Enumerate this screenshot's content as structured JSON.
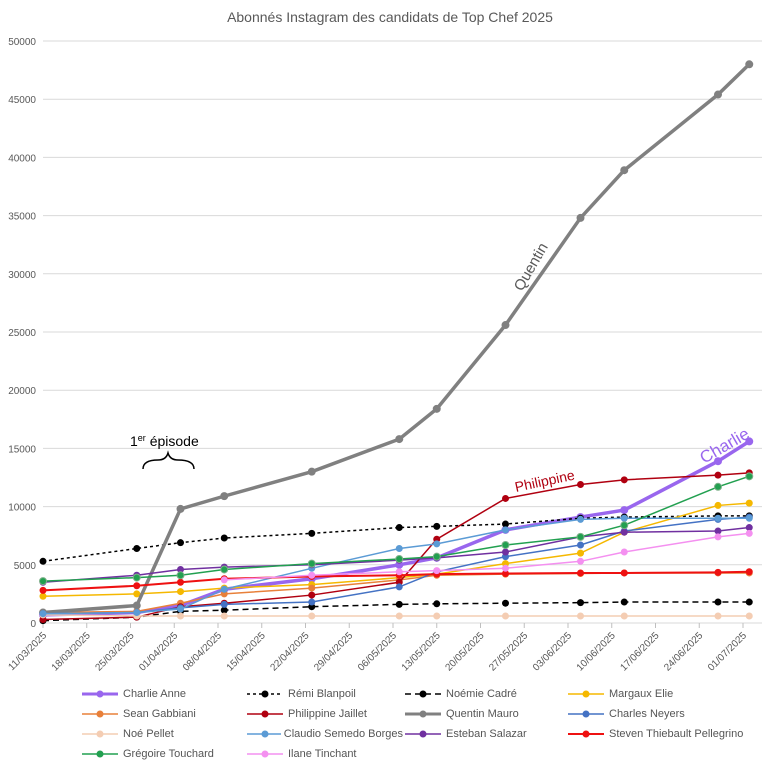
{
  "chart_data": {
    "type": "line",
    "title": "Abonnés Instagram des candidats de Top Chef 2025",
    "xlabel": "",
    "ylabel": "",
    "ylim": [
      0,
      50000
    ],
    "yticks": [
      0,
      5000,
      10000,
      15000,
      20000,
      25000,
      30000,
      35000,
      40000,
      45000,
      50000
    ],
    "xlim": [
      "2025-03-11",
      "2025-07-01"
    ],
    "xtick_labels": [
      "11/03/2025",
      "18/03/2025",
      "25/03/2025",
      "01/04/2025",
      "08/04/2025",
      "15/04/2025",
      "22/04/2025",
      "29/04/2025",
      "06/05/2025",
      "13/05/2025",
      "20/05/2025",
      "27/05/2025",
      "03/06/2025",
      "10/06/2025",
      "17/06/2025",
      "24/06/2025",
      "01/07/2025"
    ],
    "grid": true,
    "legend_position": "bottom",
    "x": [
      "2025-03-11",
      "2025-03-26",
      "2025-04-02",
      "2025-04-09",
      "2025-04-23",
      "2025-05-07",
      "2025-05-13",
      "2025-05-24",
      "2025-06-05",
      "2025-06-12",
      "2025-06-27",
      "2025-07-02"
    ],
    "series": [
      {
        "name": "Charlie Anne",
        "color": "#9966ee",
        "width": 3.5,
        "dash": "",
        "values": [
          700,
          900,
          1500,
          2900,
          3800,
          5000,
          5600,
          8000,
          9100,
          9700,
          13900,
          15600
        ]
      },
      {
        "name": "Rémi Blanpoil",
        "color": "#000000",
        "width": 1.5,
        "dash": "3,3",
        "values": [
          5300,
          6400,
          6900,
          7300,
          7700,
          8200,
          8300,
          8500,
          9000,
          9100,
          9200,
          9200
        ]
      },
      {
        "name": "Noémie Cadré",
        "color": "#000000",
        "width": 1.5,
        "dash": "6,4",
        "values": [
          200,
          500,
          1000,
          1100,
          1400,
          1600,
          1650,
          1700,
          1750,
          1800,
          1800,
          1800
        ]
      },
      {
        "name": "Margaux Elie",
        "color": "#f5b800",
        "width": 1.5,
        "dash": "",
        "values": [
          2300,
          2500,
          2700,
          3000,
          3300,
          3900,
          4200,
          5100,
          6000,
          7800,
          10100,
          10300
        ]
      },
      {
        "name": "Sean Gabbiani",
        "color": "#e8803a",
        "width": 1.5,
        "dash": "",
        "values": [
          900,
          1000,
          1700,
          2500,
          3000,
          3700,
          4100,
          4200,
          4250,
          4300,
          4300,
          4300
        ]
      },
      {
        "name": "Philippine Jaillet",
        "color": "#b00010",
        "width": 1.5,
        "dash": "",
        "values": [
          300,
          500,
          1400,
          1700,
          2400,
          3500,
          7200,
          10700,
          11900,
          12300,
          12700,
          12900
        ]
      },
      {
        "name": "Quentin Mauro",
        "color": "#808080",
        "width": 3.5,
        "dash": "",
        "values": [
          900,
          1500,
          9800,
          10900,
          13000,
          15800,
          18400,
          25600,
          34800,
          38900,
          45400,
          48000
        ]
      },
      {
        "name": "Charles Neyers",
        "color": "#4472c4",
        "width": 1.5,
        "dash": "",
        "values": [
          800,
          900,
          1300,
          1600,
          1800,
          3100,
          4400,
          5700,
          6700,
          7900,
          8900,
          9100
        ]
      },
      {
        "name": "Noé Pellet",
        "color": "#f4cdb3",
        "width": 1.5,
        "dash": "",
        "values": [
          700,
          600,
          600,
          600,
          600,
          600,
          600,
          600,
          600,
          600,
          600,
          600
        ]
      },
      {
        "name": "Claudio Semedo Borges",
        "color": "#5b9bd5",
        "width": 1.5,
        "dash": "",
        "values": [
          800,
          900,
          1200,
          2900,
          4700,
          6400,
          6800,
          8000,
          8900,
          9000,
          9000,
          9000
        ]
      },
      {
        "name": "Esteban Salazar",
        "color": "#7030a0",
        "width": 1.5,
        "dash": "",
        "values": [
          3500,
          4100,
          4600,
          4800,
          5000,
          5400,
          5600,
          6100,
          7400,
          7800,
          7900,
          8200
        ]
      },
      {
        "name": "Steven Thiebault Pellegrino",
        "color": "#ee1111",
        "width": 2,
        "dash": "",
        "values": [
          2800,
          3200,
          3500,
          3800,
          4000,
          4100,
          4200,
          4250,
          4300,
          4300,
          4350,
          4400
        ]
      },
      {
        "name": "Grégoire Touchard",
        "color": "#22a050",
        "width": 1.5,
        "dash": "",
        "values": [
          3600,
          3900,
          4100,
          4600,
          5100,
          5500,
          5700,
          6700,
          7400,
          8400,
          11700,
          12600
        ]
      },
      {
        "name": "Ilane Tinchant",
        "color": "#f490f0",
        "width": 1.5,
        "dash": "",
        "values": [
          null,
          null,
          null,
          3700,
          4100,
          4400,
          4500,
          4700,
          5300,
          6100,
          7400,
          7700
        ]
      }
    ],
    "annotations": {
      "quentin": "Quentin",
      "philippine": "Philippine",
      "charlie": "Charlie",
      "episode_prefix": "1",
      "episode_sup": "er",
      "episode_text": " épisode"
    }
  }
}
